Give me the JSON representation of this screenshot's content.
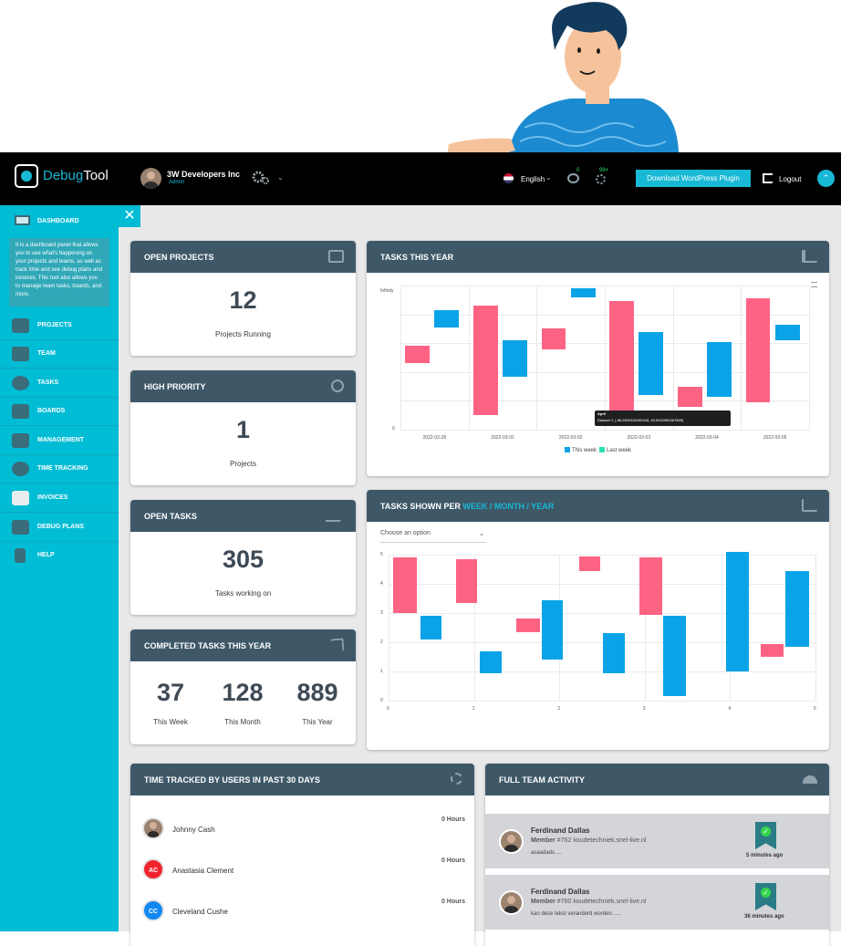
{
  "brand": {
    "name_part1": "Debug",
    "name_part2": "Tool"
  },
  "header": {
    "org_name": "3W Developers Inc",
    "role": "Admin",
    "language": "English",
    "notif_count": "0",
    "msg_count": "99+",
    "download_label": "Download WordPress Plugin",
    "logout_label": "Logout"
  },
  "sidebar": {
    "dashboard_label": "DASHBOARD",
    "help_text": "It is a dashboard panel that allows you to see what's happening on your projects and teams, as well as track time and see debug plans and invoices. This tool also allows you to manage team tasks, boards, and more.",
    "items": [
      {
        "label": "PROJECTS",
        "icon": "projects-icon"
      },
      {
        "label": "TEAM",
        "icon": "team-icon"
      },
      {
        "label": "TASKS",
        "icon": "tasks-icon"
      },
      {
        "label": "BOARDS",
        "icon": "boards-icon"
      },
      {
        "label": "MANAGEMENT",
        "icon": "management-icon"
      },
      {
        "label": "TIME TRACKING",
        "icon": "time-tracking-icon"
      },
      {
        "label": "INVOICES",
        "icon": "invoices-icon"
      },
      {
        "label": "DEBUG PLANS",
        "icon": "debug-plans-icon"
      },
      {
        "label": "HELP",
        "icon": "help-icon"
      }
    ]
  },
  "cards": {
    "open_projects": {
      "title": "OPEN PROJECTS",
      "value": "12",
      "caption": "Projects Running"
    },
    "high_priority": {
      "title": "HIGH PRIORITY",
      "value": "1",
      "caption": "Projects"
    },
    "open_tasks": {
      "title": "OPEN TASKS",
      "value": "305",
      "caption": "Tasks working on"
    },
    "completed": {
      "title": "COMPLETED TASKS THIS YEAR",
      "week_value": "37",
      "week_label": "This Week",
      "month_value": "128",
      "month_label": "This Month",
      "year_value": "889",
      "year_label": "This Year"
    }
  },
  "tasks_year": {
    "title": "TASKS THIS YEAR",
    "y_top_label": "Infinity",
    "y_bottom_label": "0",
    "tooltip_title": "April",
    "tooltip_value": "Dataset 1: [-86.6529482495418, 83.5932980367865]",
    "legend_a": "This week",
    "legend_b": "Last week",
    "colors": {
      "this_week": "#0aa3e8",
      "last_week": "#ff6384"
    }
  },
  "tasks_shown": {
    "title_prefix": "TASKS SHOWN PER",
    "title_week": "WEEK",
    "title_month": "MONTH",
    "title_year": "YEAR",
    "sep": "/",
    "select_placeholder": "Choose an option"
  },
  "time_tracked": {
    "title": "TIME TRACKED BY USERS IN PAST 30 DAYS",
    "users": [
      {
        "name": "Johnny Cash",
        "hours": "0 Hours",
        "initials": ""
      },
      {
        "name": "Anastasia Clement",
        "hours": "0 Hours",
        "initials": "AC"
      },
      {
        "name": "Cleveland Cushe",
        "hours": "0 Hours",
        "initials": "CC"
      }
    ]
  },
  "team_activity": {
    "title": "FULL TEAM ACTIVITY",
    "items": [
      {
        "name": "Ferdinand Dallas",
        "role": "Member",
        "meta": "#762 koudetechniek.snel-live.nl",
        "message": "asaadads ....",
        "time": "5 minutes ago"
      },
      {
        "name": "Ferdinand Dallas",
        "role": "Member",
        "meta": "#760 koudetechniek.snel-live.nl",
        "message": "kan deze tekst veranderd worden. ....",
        "time": "36 minutes ago"
      }
    ]
  },
  "chart_data": [
    {
      "type": "bar",
      "title": "TASKS THIS YEAR",
      "categories": [
        "2022-02-28",
        "2022-03-01",
        "2022-03-02",
        "2022-03-03",
        "2022-03-04",
        "2022-03-05"
      ],
      "series": [
        {
          "name": "This week",
          "values": [
            [
              0.71,
              0.83
            ],
            [
              0.37,
              0.62
            ],
            [
              0.92,
              0.98
            ],
            [
              0.24,
              0.68
            ],
            [
              0.23,
              0.61
            ],
            [
              0.62,
              0.73
            ]
          ]
        },
        {
          "name": "Last week",
          "values": [
            [
              0.46,
              0.58
            ],
            [
              0.1,
              0.86
            ],
            [
              0.56,
              0.7
            ],
            [
              0.06,
              0.89
            ],
            [
              0.16,
              0.3
            ],
            [
              0.19,
              0.91
            ]
          ]
        }
      ]
    },
    {
      "type": "bar",
      "title": "TASKS SHOWN PER WEEK / MONTH / YEAR",
      "x_ticks": [
        "0",
        "1",
        "2",
        "3",
        "4",
        "5"
      ],
      "y_ticks": [
        "0",
        "1",
        "2",
        "3",
        "4",
        "5"
      ],
      "ylim": [
        0,
        5
      ],
      "floating_bars": [
        {
          "x": [
            0.05,
            0.33
          ],
          "y": [
            3.0,
            4.9
          ],
          "color": "#ff6384"
        },
        {
          "x": [
            0.37,
            0.62
          ],
          "y": [
            2.1,
            2.9
          ],
          "color": "#0aa3e8"
        },
        {
          "x": [
            0.79,
            1.04
          ],
          "y": [
            3.35,
            4.85
          ],
          "color": "#ff6384"
        },
        {
          "x": [
            1.07,
            1.33
          ],
          "y": [
            0.95,
            1.7
          ],
          "color": "#0aa3e8"
        },
        {
          "x": [
            1.5,
            1.77
          ],
          "y": [
            2.35,
            2.8
          ],
          "color": "#ff6384"
        },
        {
          "x": [
            1.79,
            2.04
          ],
          "y": [
            1.4,
            3.45
          ],
          "color": "#0aa3e8"
        },
        {
          "x": [
            2.23,
            2.48
          ],
          "y": [
            4.45,
            4.95
          ],
          "color": "#ff6384"
        },
        {
          "x": [
            2.51,
            2.77
          ],
          "y": [
            0.95,
            2.3
          ],
          "color": "#0aa3e8"
        },
        {
          "x": [
            2.94,
            3.2
          ],
          "y": [
            2.95,
            4.9
          ],
          "color": "#ff6384"
        },
        {
          "x": [
            3.22,
            3.48
          ],
          "y": [
            0.15,
            2.9
          ],
          "color": "#0aa3e8"
        },
        {
          "x": [
            3.95,
            4.22
          ],
          "y": [
            1.0,
            5.1
          ],
          "color": "#0aa3e8"
        },
        {
          "x": [
            4.36,
            4.63
          ],
          "y": [
            1.5,
            1.95
          ],
          "color": "#ff6384"
        },
        {
          "x": [
            4.65,
            4.92
          ],
          "y": [
            1.85,
            4.45
          ],
          "color": "#0aa3e8"
        }
      ]
    }
  ]
}
